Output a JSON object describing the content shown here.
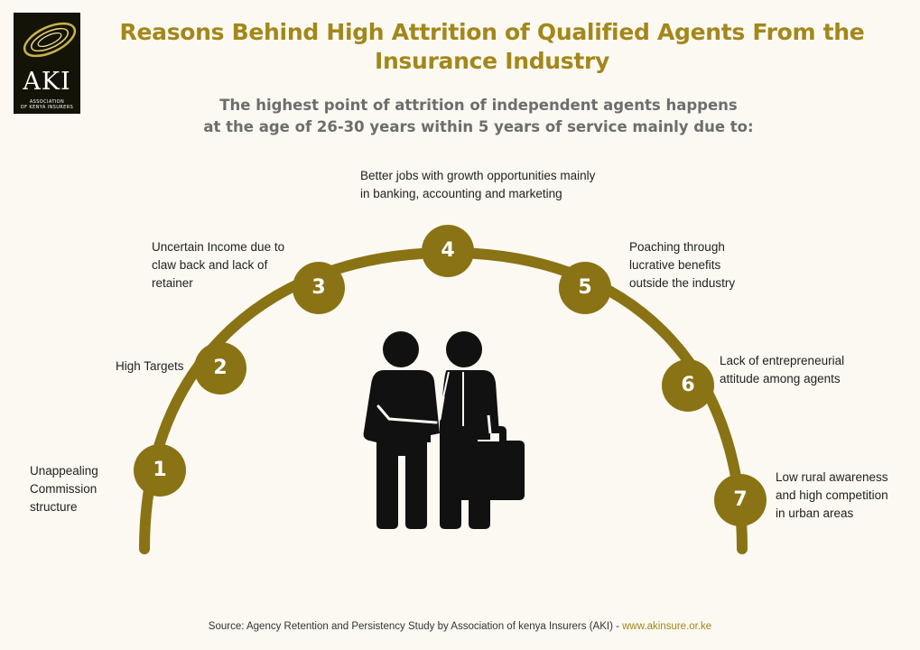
{
  "logo": {
    "abbr": "AKI",
    "name_line1": "ASSOCIATION",
    "name_line2": "OF KENYA INSURERS"
  },
  "title": "Reasons Behind High Attrition of Qualified Agents From the Insurance Industry",
  "subtitle_line1": "The highest point of attrition of independent agents happens",
  "subtitle_line2": "at the age of 26-30 years within 5 years of service mainly due to:",
  "colors": {
    "accent": "#a3871a",
    "circle": "#8a7314",
    "arc": "#8a7314",
    "background": "#fbf9f2",
    "icon": "#111111"
  },
  "reasons": [
    {
      "number": "1",
      "text": "Unappealing\nCommission\nstructure"
    },
    {
      "number": "2",
      "text": "High Targets"
    },
    {
      "number": "3",
      "text": "Uncertain Income due to\nclaw back and lack of\nretainer"
    },
    {
      "number": "4",
      "text": "Better jobs with growth opportunities mainly\nin banking, accounting and marketing"
    },
    {
      "number": "5",
      "text": "Poaching through\nlucrative benefits\noutside the industry"
    },
    {
      "number": "6",
      "text": "Lack of entrepreneurial\n attitude among agents"
    },
    {
      "number": "7",
      "text": "Low rural awareness\nand high competition\n in urban areas"
    }
  ],
  "center_icon": "two-businessmen-with-briefcase-icon",
  "source": {
    "text": "Source: Agency Retention and Persistency Study by Association of kenya Insurers (AKI) - ",
    "link": "www.akinsure.or.ke"
  }
}
